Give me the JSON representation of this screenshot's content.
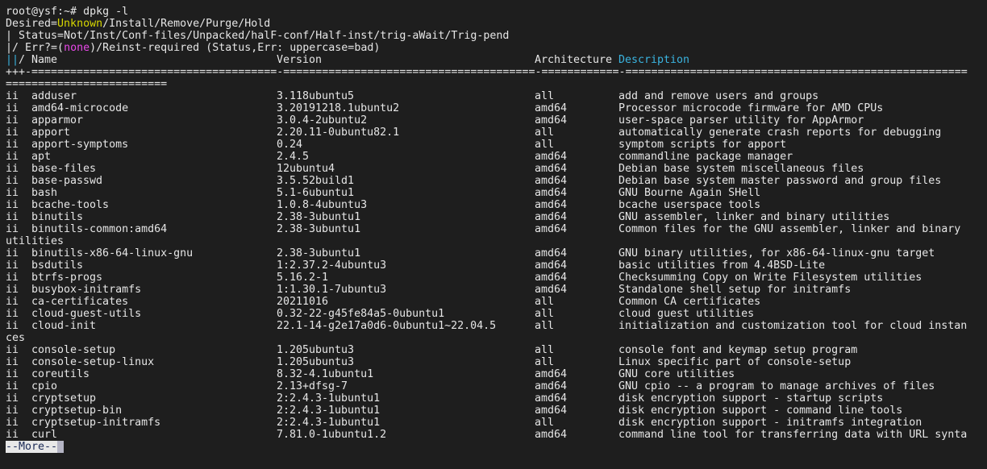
{
  "prompt": {
    "text": "root@ysf:~# ",
    "command": "dpkg -l"
  },
  "legend": {
    "desired_prefix": "Desired=",
    "desired_unknown": "Unknown",
    "desired_rest": "/Install/Remove/Purge/Hold",
    "status_line": "| Status=Not/Inst/Conf-files/Unpacked/halF-conf/Half-inst/trig-aWait/Trig-pend",
    "err_prefix": "|/ Err?=(",
    "err_none": "none",
    "err_rest": ")/Reinst-required (Status,Err: uppercase=bad)"
  },
  "header": {
    "bars": "||",
    "slash": "/ Name",
    "version": "Version",
    "architecture": "Architecture",
    "description": "Description"
  },
  "divider": {
    "line1": "+++-======================================-=======================================-============-=====================================================",
    "line2": "========================="
  },
  "rows": [
    {
      "status": "ii",
      "name": "adduser",
      "version": "3.118ubuntu5",
      "arch": "all",
      "desc": "add and remove users and groups"
    },
    {
      "status": "ii",
      "name": "amd64-microcode",
      "version": "3.20191218.1ubuntu2",
      "arch": "amd64",
      "desc": "Processor microcode firmware for AMD CPUs"
    },
    {
      "status": "ii",
      "name": "apparmor",
      "version": "3.0.4-2ubuntu2",
      "arch": "amd64",
      "desc": "user-space parser utility for AppArmor"
    },
    {
      "status": "ii",
      "name": "apport",
      "version": "2.20.11-0ubuntu82.1",
      "arch": "all",
      "desc": "automatically generate crash reports for debugging"
    },
    {
      "status": "ii",
      "name": "apport-symptoms",
      "version": "0.24",
      "arch": "all",
      "desc": "symptom scripts for apport"
    },
    {
      "status": "ii",
      "name": "apt",
      "version": "2.4.5",
      "arch": "amd64",
      "desc": "commandline package manager"
    },
    {
      "status": "ii",
      "name": "base-files",
      "version": "12ubuntu4",
      "arch": "amd64",
      "desc": "Debian base system miscellaneous files"
    },
    {
      "status": "ii",
      "name": "base-passwd",
      "version": "3.5.52build1",
      "arch": "amd64",
      "desc": "Debian base system master password and group files"
    },
    {
      "status": "ii",
      "name": "bash",
      "version": "5.1-6ubuntu1",
      "arch": "amd64",
      "desc": "GNU Bourne Again SHell"
    },
    {
      "status": "ii",
      "name": "bcache-tools",
      "version": "1.0.8-4ubuntu3",
      "arch": "amd64",
      "desc": "bcache userspace tools"
    },
    {
      "status": "ii",
      "name": "binutils",
      "version": "2.38-3ubuntu1",
      "arch": "amd64",
      "desc": "GNU assembler, linker and binary utilities"
    },
    {
      "status": "ii",
      "name": "binutils-common:amd64",
      "version": "2.38-3ubuntu1",
      "arch": "amd64",
      "desc": "Common files for the GNU assembler, linker and binary",
      "wrap": "utilities"
    },
    {
      "status": "ii",
      "name": "binutils-x86-64-linux-gnu",
      "version": "2.38-3ubuntu1",
      "arch": "amd64",
      "desc": "GNU binary utilities, for x86-64-linux-gnu target"
    },
    {
      "status": "ii",
      "name": "bsdutils",
      "version": "1:2.37.2-4ubuntu3",
      "arch": "amd64",
      "desc": "basic utilities from 4.4BSD-Lite"
    },
    {
      "status": "ii",
      "name": "btrfs-progs",
      "version": "5.16.2-1",
      "arch": "amd64",
      "desc": "Checksumming Copy on Write Filesystem utilities"
    },
    {
      "status": "ii",
      "name": "busybox-initramfs",
      "version": "1:1.30.1-7ubuntu3",
      "arch": "amd64",
      "desc": "Standalone shell setup for initramfs"
    },
    {
      "status": "ii",
      "name": "ca-certificates",
      "version": "20211016",
      "arch": "all",
      "desc": "Common CA certificates"
    },
    {
      "status": "ii",
      "name": "cloud-guest-utils",
      "version": "0.32-22-g45fe84a5-0ubuntu1",
      "arch": "all",
      "desc": "cloud guest utilities"
    },
    {
      "status": "ii",
      "name": "cloud-init",
      "version": "22.1-14-g2e17a0d6-0ubuntu1~22.04.5",
      "arch": "all",
      "desc": "initialization and customization tool for cloud instan",
      "wrap": "ces"
    },
    {
      "status": "ii",
      "name": "console-setup",
      "version": "1.205ubuntu3",
      "arch": "all",
      "desc": "console font and keymap setup program"
    },
    {
      "status": "ii",
      "name": "console-setup-linux",
      "version": "1.205ubuntu3",
      "arch": "all",
      "desc": "Linux specific part of console-setup"
    },
    {
      "status": "ii",
      "name": "coreutils",
      "version": "8.32-4.1ubuntu1",
      "arch": "amd64",
      "desc": "GNU core utilities"
    },
    {
      "status": "ii",
      "name": "cpio",
      "version": "2.13+dfsg-7",
      "arch": "amd64",
      "desc": "GNU cpio -- a program to manage archives of files"
    },
    {
      "status": "ii",
      "name": "cryptsetup",
      "version": "2:2.4.3-1ubuntu1",
      "arch": "amd64",
      "desc": "disk encryption support - startup scripts"
    },
    {
      "status": "ii",
      "name": "cryptsetup-bin",
      "version": "2:2.4.3-1ubuntu1",
      "arch": "amd64",
      "desc": "disk encryption support - command line tools"
    },
    {
      "status": "ii",
      "name": "cryptsetup-initramfs",
      "version": "2:2.4.3-1ubuntu1",
      "arch": "all",
      "desc": "disk encryption support - initramfs integration"
    },
    {
      "status": "ii",
      "name": "curl",
      "version": "7.81.0-1ubuntu1.2",
      "arch": "amd64",
      "desc": "command line tool for transferring data with URL synta"
    }
  ],
  "pager": {
    "more_label": "--More--"
  },
  "colors": {
    "background": "#1e1e1e",
    "text": "#e6e6e6",
    "yellow": "#d7d700",
    "magenta": "#e848e8",
    "cyan": "#3ab4e0"
  }
}
